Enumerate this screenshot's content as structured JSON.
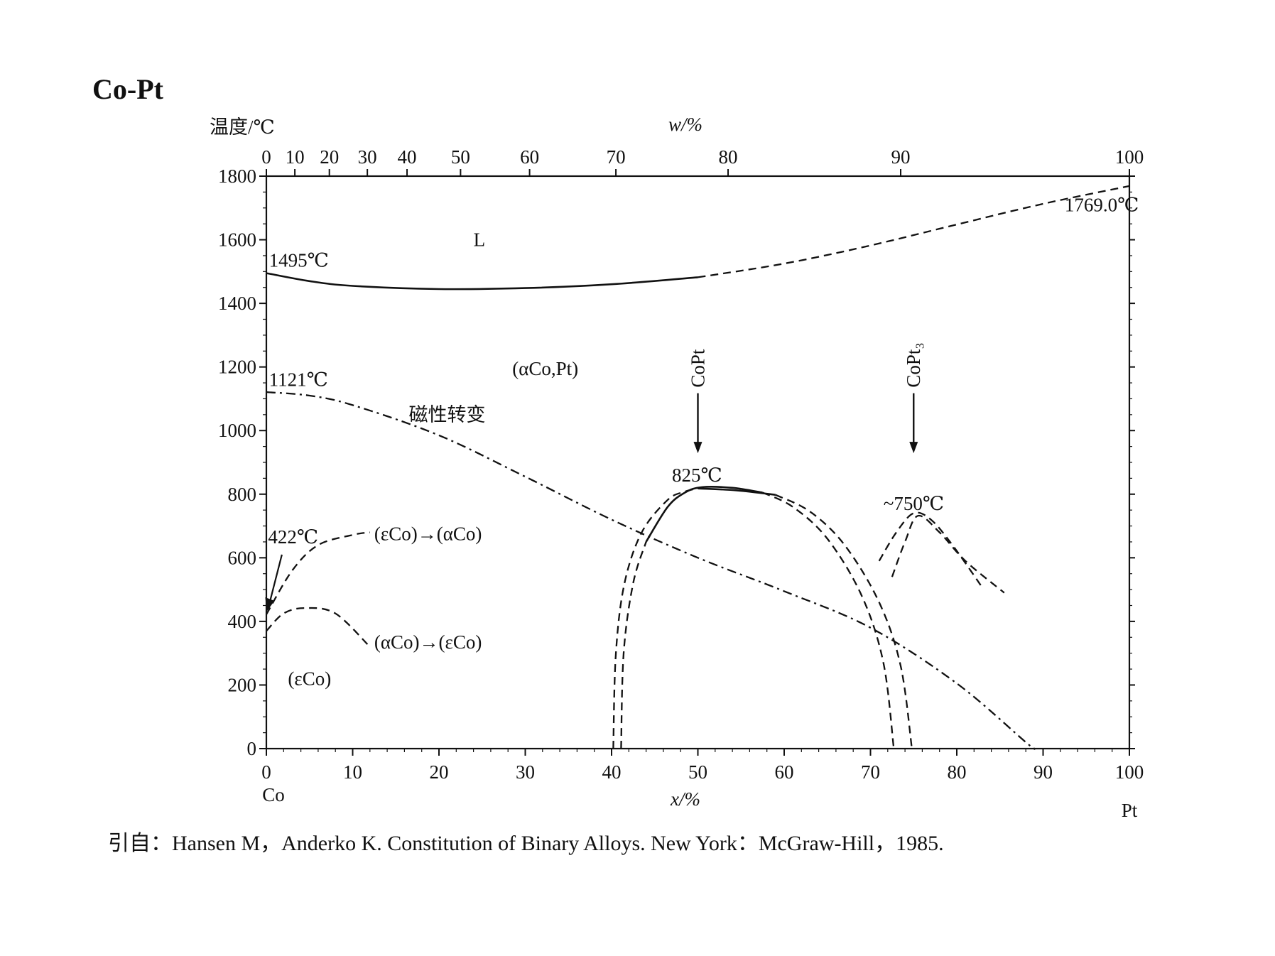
{
  "page_title": "Co-Pt",
  "citation": "引自：Hansen M，Anderko K. Constitution of Binary Alloys. New York：McGraw-Hill，1985.",
  "chart_data": {
    "type": "line",
    "title": "Co-Pt",
    "ylabel": "温度/℃",
    "xlabel": "x/%",
    "top_xlabel": "w/%",
    "x_left_label": "Co",
    "x_right_label": "Pt",
    "xlim": [
      0,
      100
    ],
    "ylim": [
      0,
      1800
    ],
    "x_ticks": [
      0,
      10,
      20,
      30,
      40,
      50,
      60,
      70,
      80,
      90,
      100
    ],
    "y_ticks": [
      0,
      200,
      400,
      600,
      800,
      1000,
      1200,
      1400,
      1600,
      1800
    ],
    "top_ticks": [
      0,
      10,
      20,
      30,
      40,
      50,
      60,
      70,
      80,
      90,
      100
    ],
    "top_tick_x_positions": [
      0,
      3.3,
      7.3,
      11.7,
      16.3,
      22.5,
      30.5,
      40.5,
      53.5,
      73.5,
      100
    ],
    "series": [
      {
        "style": "solid",
        "points": [
          [
            0,
            1495
          ],
          [
            5,
            1470
          ],
          [
            10,
            1455
          ],
          [
            20,
            1445
          ],
          [
            30,
            1448
          ],
          [
            40,
            1460
          ],
          [
            50,
            1482
          ]
        ]
      },
      {
        "style": "dashed",
        "points": [
          [
            50,
            1482
          ],
          [
            60,
            1525
          ],
          [
            70,
            1582
          ],
          [
            80,
            1648
          ],
          [
            90,
            1713
          ],
          [
            100,
            1769
          ]
        ]
      },
      {
        "style": "dashdot",
        "points": [
          [
            0,
            1121
          ],
          [
            5,
            1110
          ],
          [
            10,
            1080
          ],
          [
            20,
            985
          ],
          [
            30,
            855
          ],
          [
            40,
            720
          ],
          [
            50,
            600
          ],
          [
            60,
            495
          ],
          [
            70,
            380
          ],
          [
            80,
            205
          ],
          [
            88,
            20
          ],
          [
            89,
            0
          ]
        ]
      },
      {
        "style": "dashed",
        "points": [
          [
            0,
            422
          ],
          [
            3,
            560
          ],
          [
            6,
            640
          ],
          [
            10,
            672
          ],
          [
            12,
            680
          ]
        ]
      },
      {
        "style": "dashed",
        "points": [
          [
            0,
            370
          ],
          [
            2,
            425
          ],
          [
            4.5,
            442
          ],
          [
            8,
            425
          ],
          [
            12,
            320
          ]
        ]
      },
      {
        "style": "dashed",
        "points": [
          [
            40.2,
            0
          ],
          [
            40.5,
            300
          ],
          [
            41.5,
            520
          ],
          [
            43.5,
            680
          ],
          [
            46.5,
            782
          ],
          [
            48.5,
            808
          ],
          [
            50,
            818
          ]
        ]
      },
      {
        "style": "dashed",
        "points": [
          [
            41.1,
            0
          ],
          [
            41.4,
            300
          ],
          [
            42.5,
            520
          ],
          [
            44,
            650
          ]
        ]
      },
      {
        "style": "solid",
        "points": [
          [
            44,
            650
          ],
          [
            46.5,
            760
          ],
          [
            48.5,
            805
          ],
          [
            50.5,
            822
          ],
          [
            54,
            820
          ],
          [
            57.5,
            805
          ]
        ]
      },
      {
        "style": "solid",
        "points": [
          [
            50,
            818
          ],
          [
            54.5,
            812
          ],
          [
            59,
            798
          ]
        ]
      },
      {
        "style": "dashed",
        "points": [
          [
            57.5,
            805
          ],
          [
            61,
            760
          ],
          [
            65,
            660
          ],
          [
            69,
            480
          ],
          [
            71.5,
            270
          ],
          [
            72.7,
            0
          ]
        ]
      },
      {
        "style": "dashed",
        "points": [
          [
            59,
            798
          ],
          [
            63,
            745
          ],
          [
            67,
            640
          ],
          [
            71,
            460
          ],
          [
            73.5,
            260
          ],
          [
            74.8,
            0
          ]
        ]
      },
      {
        "style": "dashed",
        "points": [
          [
            71,
            590
          ],
          [
            73,
            680
          ],
          [
            75,
            740
          ],
          [
            77,
            720
          ],
          [
            79.5,
            640
          ],
          [
            83,
            505
          ]
        ]
      },
      {
        "style": "dashed",
        "points": [
          [
            72.5,
            540
          ],
          [
            74,
            650
          ],
          [
            75.5,
            732
          ],
          [
            78,
            680
          ],
          [
            81,
            590
          ],
          [
            85.5,
            490
          ]
        ]
      }
    ],
    "annotations": [
      {
        "text": "L",
        "x": 24,
        "y": 1580
      },
      {
        "text": "1495℃",
        "x": 0.3,
        "y": 1515
      },
      {
        "text": "1769.0℃",
        "x": 92.5,
        "y": 1690
      },
      {
        "text": "1121℃",
        "x": 0.3,
        "y": 1140
      },
      {
        "text": "(αCo,Pt)",
        "x": 28.5,
        "y": 1175
      },
      {
        "text": "磁性转变",
        "x": 16.5,
        "y": 1030
      },
      {
        "text": "825℃",
        "x": 47,
        "y": 840
      },
      {
        "text": "~750℃",
        "x": 71.5,
        "y": 750
      },
      {
        "text": "422℃",
        "x": 0.2,
        "y": 645
      },
      {
        "text": "(εCo)→(αCo)",
        "x": 12.5,
        "y": 655
      },
      {
        "text": "(αCo)→(εCo)",
        "x": 12.5,
        "y": 315
      },
      {
        "text": "(εCo)",
        "x": 2.5,
        "y": 200
      }
    ],
    "compound_markers": [
      {
        "label": "CoPt",
        "x": 50
      },
      {
        "label": "CoPt₃",
        "x": 75
      }
    ],
    "grid": false
  }
}
